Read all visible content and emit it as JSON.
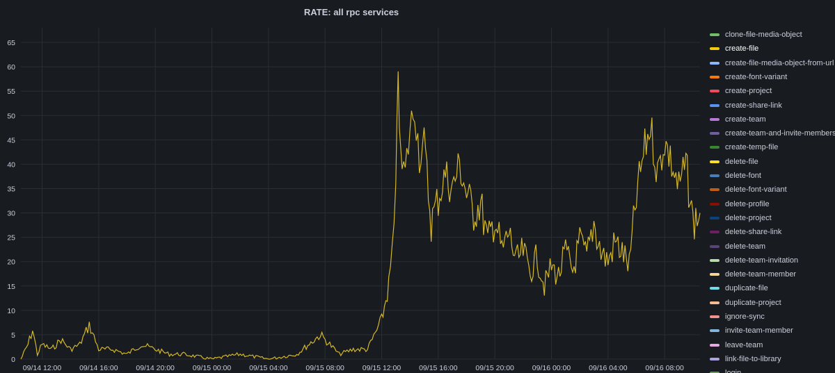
{
  "panel": {
    "title": "RATE: all rpc services"
  },
  "chart_data": {
    "type": "line",
    "title": "RATE: all rpc services",
    "xlabel": "",
    "ylabel": "",
    "ylim": [
      0,
      68
    ],
    "y_ticks": [
      0,
      5,
      10,
      15,
      20,
      25,
      30,
      35,
      40,
      45,
      50,
      55,
      60,
      65
    ],
    "x_ticks": [
      "09/14 12:00",
      "09/14 16:00",
      "09/14 20:00",
      "09/15 00:00",
      "09/15 04:00",
      "09/15 08:00",
      "09/15 12:00",
      "09/15 16:00",
      "09/15 20:00",
      "09/16 00:00",
      "09/16 04:00",
      "09/16 08:00"
    ],
    "x_range": [
      "09/14 10:30",
      "09/16 10:30"
    ],
    "grid": true,
    "legend_position": "right",
    "series": [
      {
        "name": "create-file",
        "color": "#d4b82a",
        "points": [
          [
            "09/14 10:30",
            0
          ],
          [
            "09/14 11:00",
            3
          ],
          [
            "09/14 11:20",
            6
          ],
          [
            "09/14 11:40",
            1
          ],
          [
            "09/14 12:00",
            3
          ],
          [
            "09/14 12:40",
            2
          ],
          [
            "09/14 13:20",
            4
          ],
          [
            "09/14 14:00",
            2
          ],
          [
            "09/14 14:40",
            3
          ],
          [
            "09/14 15:20",
            7
          ],
          [
            "09/14 16:00",
            2
          ],
          [
            "09/14 17:00",
            2
          ],
          [
            "09/14 18:00",
            1
          ],
          [
            "09/14 19:00",
            3
          ],
          [
            "09/14 20:00",
            2
          ],
          [
            "09/14 21:00",
            1
          ],
          [
            "09/14 22:00",
            1
          ],
          [
            "09/15 00:00",
            0
          ],
          [
            "09/15 02:00",
            1
          ],
          [
            "09/15 04:00",
            0
          ],
          [
            "09/15 06:00",
            1
          ],
          [
            "09/15 07:40",
            5
          ],
          [
            "09/15 09:00",
            1
          ],
          [
            "09/15 10:00",
            2
          ],
          [
            "09/15 11:00",
            2
          ],
          [
            "09/15 12:00",
            8
          ],
          [
            "09/15 12:30",
            15
          ],
          [
            "09/15 12:45",
            22
          ],
          [
            "09/15 13:00",
            32
          ],
          [
            "09/15 13:10",
            61
          ],
          [
            "09/15 13:20",
            40
          ],
          [
            "09/15 13:40",
            38
          ],
          [
            "09/15 14:00",
            47
          ],
          [
            "09/15 14:20",
            52
          ],
          [
            "09/15 14:40",
            42
          ],
          [
            "09/15 15:00",
            44
          ],
          [
            "09/15 15:30",
            28
          ],
          [
            "09/15 16:00",
            33
          ],
          [
            "09/15 16:30",
            38
          ],
          [
            "09/15 17:00",
            35
          ],
          [
            "09/15 17:30",
            40
          ],
          [
            "09/15 18:00",
            34
          ],
          [
            "09/15 18:30",
            30
          ],
          [
            "09/15 19:00",
            32
          ],
          [
            "09/15 19:30",
            24
          ],
          [
            "09/15 20:00",
            29
          ],
          [
            "09/15 20:30",
            22
          ],
          [
            "09/15 21:00",
            26
          ],
          [
            "09/15 21:30",
            20
          ],
          [
            "09/15 22:00",
            22
          ],
          [
            "09/15 22:30",
            18
          ],
          [
            "09/15 23:00",
            21
          ],
          [
            "09/15 23:30",
            15
          ],
          [
            "09/16 00:00",
            19
          ],
          [
            "09/16 00:30",
            17
          ],
          [
            "09/16 01:00",
            22
          ],
          [
            "09/16 01:30",
            18
          ],
          [
            "09/16 02:00",
            24
          ],
          [
            "09/16 02:30",
            21
          ],
          [
            "09/16 03:00",
            28
          ],
          [
            "09/16 03:30",
            22
          ],
          [
            "09/16 04:00",
            20
          ],
          [
            "09/16 04:30",
            24
          ],
          [
            "09/16 05:00",
            22
          ],
          [
            "09/16 05:30",
            19
          ],
          [
            "09/16 06:00",
            33
          ],
          [
            "09/16 06:30",
            42
          ],
          [
            "09/16 07:00",
            48
          ],
          [
            "09/16 07:30",
            38
          ],
          [
            "09/16 08:00",
            45
          ],
          [
            "09/16 08:30",
            40
          ],
          [
            "09/16 09:00",
            35
          ],
          [
            "09/16 09:30",
            40
          ],
          [
            "09/16 10:00",
            28
          ],
          [
            "09/16 10:30",
            30
          ]
        ]
      }
    ]
  },
  "legend": {
    "items": [
      {
        "label": "clone-file-media-object",
        "color": "#73bf69"
      },
      {
        "label": "create-file",
        "color": "#f2cc0c"
      },
      {
        "label": "create-file-media-object-from-url",
        "color": "#8ab8ff"
      },
      {
        "label": "create-font-variant",
        "color": "#ff780a"
      },
      {
        "label": "create-project",
        "color": "#f2495c"
      },
      {
        "label": "create-share-link",
        "color": "#5794f2"
      },
      {
        "label": "create-team",
        "color": "#b877d9"
      },
      {
        "label": "create-team-and-invite-members",
        "color": "#705da0"
      },
      {
        "label": "create-temp-file",
        "color": "#37872d"
      },
      {
        "label": "delete-file",
        "color": "#fade2a"
      },
      {
        "label": "delete-font",
        "color": "#447ebc"
      },
      {
        "label": "delete-font-variant",
        "color": "#c15c17"
      },
      {
        "label": "delete-profile",
        "color": "#890f02"
      },
      {
        "label": "delete-project",
        "color": "#0a437c"
      },
      {
        "label": "delete-share-link",
        "color": "#6d1f62"
      },
      {
        "label": "delete-team",
        "color": "#584477"
      },
      {
        "label": "delete-team-invitation",
        "color": "#b7dbab"
      },
      {
        "label": "delete-team-member",
        "color": "#f4d598"
      },
      {
        "label": "duplicate-file",
        "color": "#70dbed"
      },
      {
        "label": "duplicate-project",
        "color": "#f9ba8f"
      },
      {
        "label": "ignore-sync",
        "color": "#f29191"
      },
      {
        "label": "invite-team-member",
        "color": "#82b5d8"
      },
      {
        "label": "leave-team",
        "color": "#e5a8e2"
      },
      {
        "label": "link-file-to-library",
        "color": "#aea2e0"
      },
      {
        "label": "login",
        "color": "#629e51"
      }
    ]
  }
}
